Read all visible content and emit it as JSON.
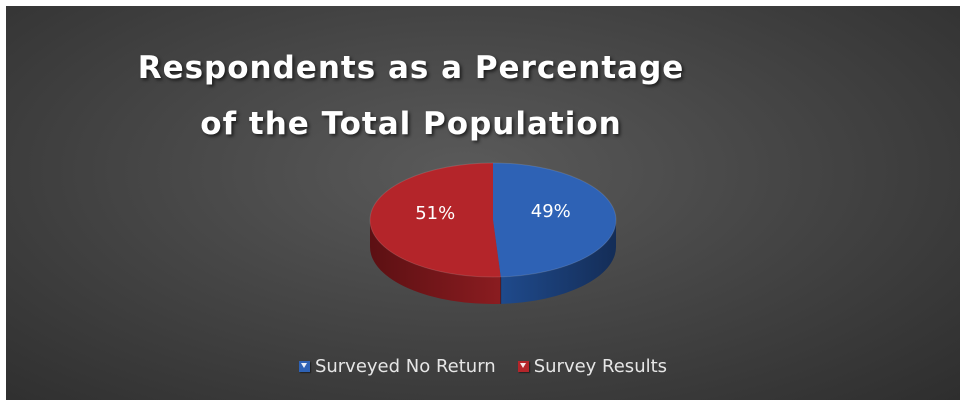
{
  "chart_data": {
    "type": "pie",
    "title": "Respondents as a Percentage of the Total Population",
    "title_lines": [
      "Respondents as a Percentage",
      "of the Total Population"
    ],
    "slices": [
      {
        "name": "Surveyed No Return",
        "value": 49,
        "label": "49%",
        "color": "#2e62b5",
        "side_color": "#1a3c73"
      },
      {
        "name": "Survey Results",
        "value": 51,
        "label": "51%",
        "color": "#b4252a",
        "side_color": "#6e1518"
      }
    ],
    "legend_placement": "bottom",
    "background_color": "#444444",
    "style": "3d"
  }
}
